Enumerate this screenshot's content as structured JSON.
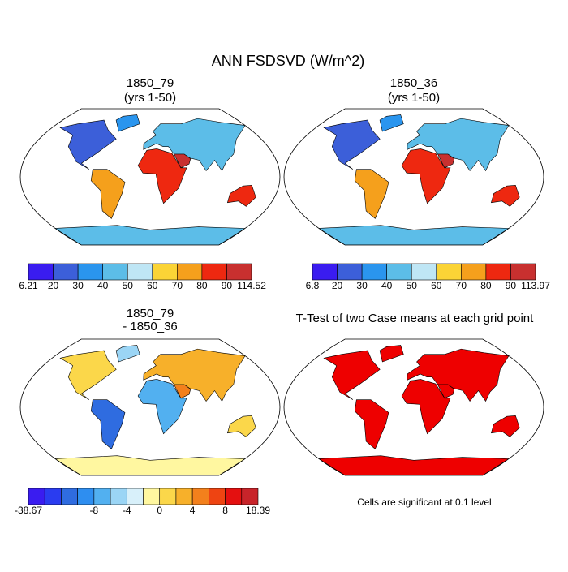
{
  "title": "ANN FSDSVD (W/m^2)",
  "panels": [
    {
      "title": [
        "1850_79",
        "(yrs 1-50)"
      ],
      "colorbar": {
        "colors": [
          "#3a1cf0",
          "#3c5fd9",
          "#2a95ee",
          "#5cbde8",
          "#bfe6f5",
          "#fbd436",
          "#f5a01c",
          "#ee2810",
          "#c8302f"
        ],
        "labels": [
          "6.21",
          "20",
          "30",
          "40",
          "50",
          "60",
          "70",
          "80",
          "90",
          "114.52"
        ]
      }
    },
    {
      "title": [
        "1850_36",
        "(yrs 1-50)"
      ],
      "colorbar": {
        "colors": [
          "#3a1cf0",
          "#3c5fd9",
          "#2a95ee",
          "#5cbde8",
          "#bfe6f5",
          "#fbd436",
          "#f5a01c",
          "#ee2810",
          "#c8302f"
        ],
        "labels": [
          "6.8",
          "20",
          "30",
          "40",
          "50",
          "60",
          "70",
          "80",
          "90",
          "113.97"
        ]
      }
    },
    {
      "title": [
        "1850_79",
        "- 1850_36"
      ],
      "colorbar": {
        "colors": [
          "#3a1cf0",
          "#2a3cf0",
          "#2f6ce0",
          "#2e8ef0",
          "#52b0f0",
          "#9bd5f5",
          "#d8f0fa",
          "#fff7a0",
          "#fbd74a",
          "#f7b02a",
          "#f3801c",
          "#ee4412",
          "#e41010",
          "#c8242a"
        ],
        "labels": [
          "-38.67",
          "-8",
          "-4",
          "0",
          "4",
          "8",
          "18.39"
        ]
      }
    },
    {
      "title": [
        "T-Test of two Case means at each grid point"
      ],
      "note": "Cells are significant at 0.1 level"
    }
  ]
}
